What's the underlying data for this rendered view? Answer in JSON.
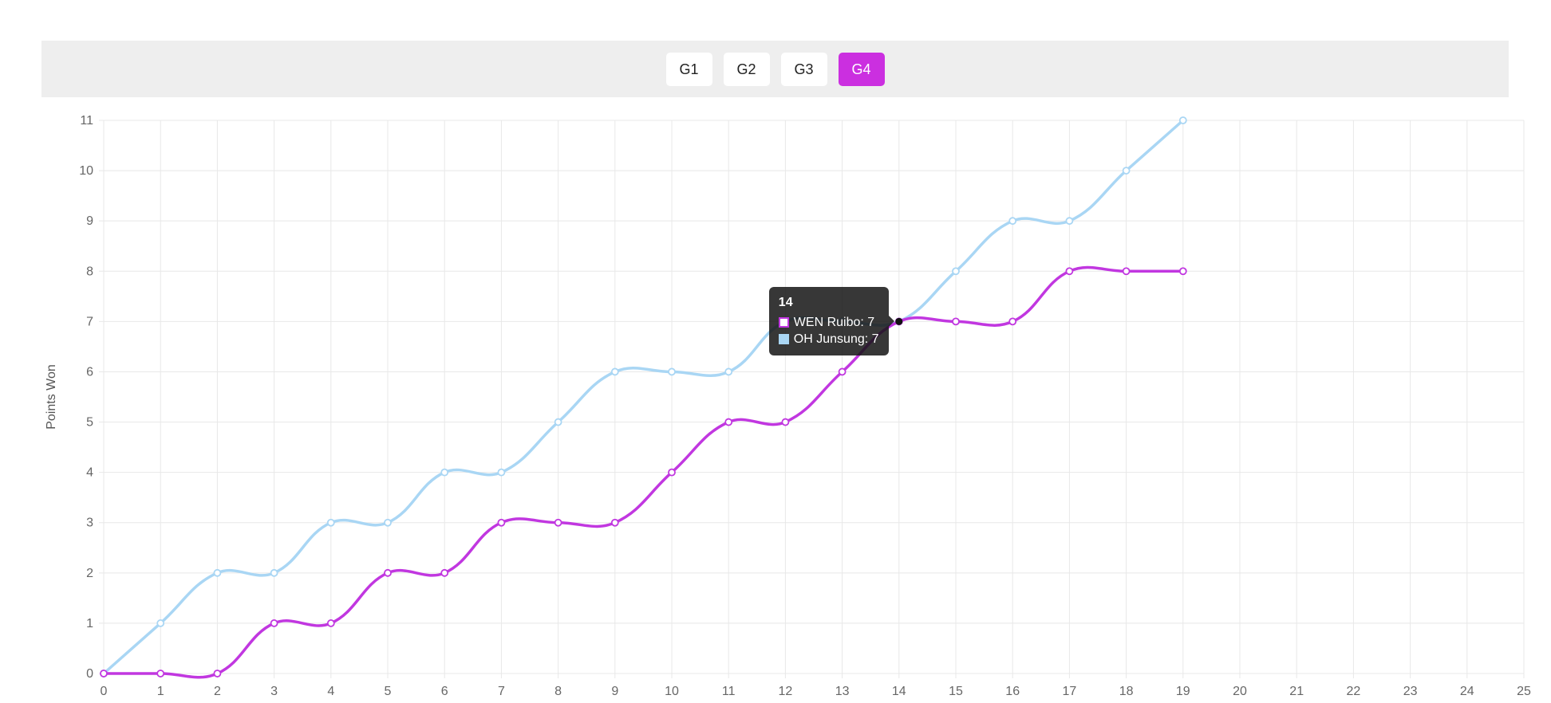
{
  "toolbar": {
    "buttons": [
      {
        "label": "G1",
        "active": false
      },
      {
        "label": "G2",
        "active": false
      },
      {
        "label": "G3",
        "active": false
      },
      {
        "label": "G4",
        "active": true
      }
    ]
  },
  "colors": {
    "toolbar_bg": "#eeeeee",
    "button_bg": "#ffffff",
    "button_text": "#222222",
    "active_button_bg": "#cb2fe0",
    "active_button_text": "#ffffff",
    "grid": "#e8e8e8",
    "tick_text": "#666666",
    "axis_title_text": "#555555",
    "tooltip_bg": "rgba(20,20,20,0.85)",
    "active_point": "#111111"
  },
  "chart_data": {
    "type": "line",
    "title": "",
    "xlabel": "",
    "ylabel": "Points Won",
    "xlim": [
      0,
      25
    ],
    "ylim": [
      0,
      11
    ],
    "grid": true,
    "legend_position": "none",
    "x_ticks": [
      0,
      1,
      2,
      3,
      4,
      5,
      6,
      7,
      8,
      9,
      10,
      11,
      12,
      13,
      14,
      15,
      16,
      17,
      18,
      19,
      20,
      21,
      22,
      23,
      24,
      25
    ],
    "y_ticks": [
      0,
      1,
      2,
      3,
      4,
      5,
      6,
      7,
      8,
      9,
      10,
      11
    ],
    "x": [
      0,
      1,
      2,
      3,
      4,
      5,
      6,
      7,
      8,
      9,
      10,
      11,
      12,
      13,
      14,
      15,
      16,
      17,
      18,
      19
    ],
    "series": [
      {
        "name": "WEN Ruibo",
        "color": "#c137e0",
        "point_fill": "#ffffff",
        "values": [
          0,
          0,
          0,
          1,
          1,
          2,
          2,
          3,
          3,
          3,
          4,
          5,
          5,
          6,
          7,
          7,
          7,
          8,
          8,
          8
        ]
      },
      {
        "name": "OH Junsung",
        "color": "#a9d6f4",
        "point_fill": "#ffffff",
        "values": [
          0,
          1,
          2,
          2,
          3,
          3,
          4,
          4,
          5,
          6,
          6,
          6,
          7,
          7,
          7,
          8,
          9,
          9,
          10,
          11
        ]
      }
    ],
    "tooltip": {
      "at_x": 14,
      "at_y": 7,
      "title": "14",
      "rows": [
        {
          "text": "WEN Ruibo: 7",
          "box_border": "#c137e0",
          "box_fill": "#ffffff"
        },
        {
          "text": "OH Junsung: 7",
          "box_border": "#a9d6f4",
          "box_fill": "#a9d6f4"
        }
      ]
    }
  }
}
